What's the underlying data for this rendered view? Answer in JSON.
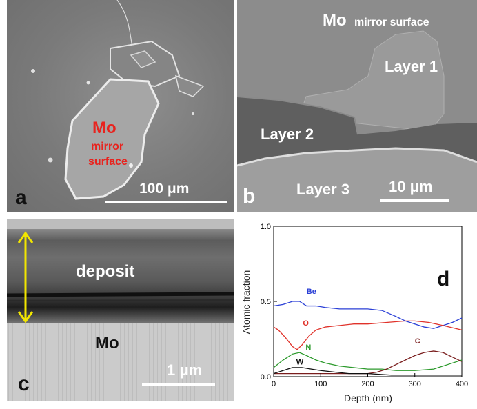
{
  "panel_a": {
    "letter": "a",
    "label_mo": "Mo",
    "label_mirror": "mirror",
    "label_surface": "surface",
    "scale": "100 μm",
    "label_color": "#e8231e"
  },
  "panel_b": {
    "letter": "b",
    "mo": "Mo",
    "mirror_surface": "mirror surface",
    "layer1": "Layer 1",
    "layer2": "Layer 2",
    "layer3": "Layer 3",
    "scale": "10 μm"
  },
  "panel_c": {
    "letter": "c",
    "deposit": "deposit",
    "mo": "Mo",
    "scale": "1 μm",
    "arrow_color": "#f2e600"
  },
  "panel_d": {
    "letter": "d"
  },
  "chart_data": {
    "type": "line",
    "xlabel": "Depth (nm)",
    "ylabel": "Atomic fraction",
    "xlim": [
      0,
      400
    ],
    "ylim": [
      0.0,
      1.0
    ],
    "x_ticks": [
      "0",
      "100",
      "200",
      "300",
      "400"
    ],
    "y_ticks": [
      "0.0",
      "0.5",
      "1.0"
    ],
    "grid": false,
    "series": [
      {
        "name": "Be",
        "color": "#2a3fd6",
        "x": [
          0,
          20,
          40,
          55,
          70,
          90,
          110,
          140,
          170,
          200,
          230,
          260,
          280,
          300,
          320,
          340,
          360,
          380,
          400
        ],
        "y": [
          0.47,
          0.48,
          0.5,
          0.5,
          0.47,
          0.47,
          0.46,
          0.45,
          0.45,
          0.45,
          0.44,
          0.4,
          0.37,
          0.35,
          0.33,
          0.32,
          0.34,
          0.36,
          0.39
        ]
      },
      {
        "name": "O",
        "color": "#e0322a",
        "x": [
          0,
          10,
          25,
          40,
          50,
          60,
          75,
          90,
          110,
          140,
          170,
          200,
          240,
          280,
          300,
          330,
          360,
          400
        ],
        "y": [
          0.33,
          0.31,
          0.26,
          0.2,
          0.18,
          0.21,
          0.27,
          0.31,
          0.33,
          0.34,
          0.35,
          0.35,
          0.36,
          0.37,
          0.37,
          0.36,
          0.34,
          0.31
        ]
      },
      {
        "name": "N",
        "color": "#2c9a2c",
        "x": [
          0,
          20,
          40,
          55,
          70,
          90,
          110,
          140,
          170,
          200,
          230,
          260,
          300,
          340,
          370,
          400
        ],
        "y": [
          0.06,
          0.11,
          0.15,
          0.16,
          0.14,
          0.11,
          0.09,
          0.07,
          0.06,
          0.05,
          0.05,
          0.04,
          0.04,
          0.05,
          0.08,
          0.11
        ]
      },
      {
        "name": "C",
        "color": "#7a1e1e",
        "x": [
          0,
          50,
          100,
          150,
          200,
          220,
          240,
          260,
          280,
          300,
          320,
          340,
          360,
          380,
          400
        ],
        "y": [
          0.02,
          0.02,
          0.02,
          0.02,
          0.02,
          0.03,
          0.05,
          0.08,
          0.11,
          0.14,
          0.16,
          0.17,
          0.16,
          0.13,
          0.1
        ]
      },
      {
        "name": "W",
        "color": "#111111",
        "x": [
          0,
          20,
          40,
          60,
          80,
          100,
          130,
          160,
          200,
          250,
          300,
          350,
          400
        ],
        "y": [
          0.02,
          0.04,
          0.06,
          0.06,
          0.05,
          0.04,
          0.03,
          0.02,
          0.02,
          0.01,
          0.01,
          0.01,
          0.01
        ]
      }
    ]
  }
}
